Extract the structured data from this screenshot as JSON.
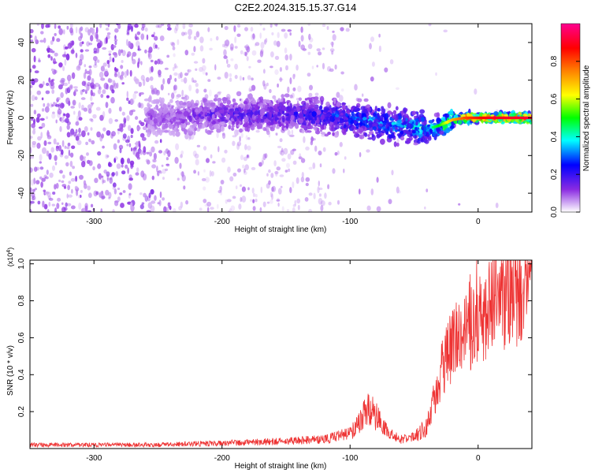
{
  "title": "C2E2.2024.315.15.37.G14",
  "chart_data": [
    {
      "type": "heatmap",
      "title": "C2E2.2024.315.15.37.G14",
      "xlabel": "Height of straight line (km)",
      "ylabel": "Frequency (Hz)",
      "xlim": [
        -350,
        42
      ],
      "ylim": [
        -50,
        50
      ],
      "x_ticks": [
        -300,
        -200,
        -100,
        0
      ],
      "y_ticks": [
        -40,
        -20,
        0,
        20,
        40
      ],
      "colorbar": {
        "label": "Normalized spectral amplitude",
        "range": [
          0,
          1
        ],
        "ticks": [
          0.0,
          0.2,
          0.4,
          0.6,
          0.8
        ],
        "colors": [
          "#ffffff",
          "#8a2be2",
          "#0000ff",
          "#00ffff",
          "#00ff00",
          "#ffff00",
          "#ff8000",
          "#ff0000",
          "#ff0090"
        ]
      },
      "ridge": {
        "x": [
          -350,
          -250,
          -200,
          -150,
          -120,
          -100,
          -80,
          -60,
          -40,
          -30,
          -20,
          -10,
          0,
          10,
          20,
          42
        ],
        "frequency": [
          0,
          0,
          2,
          2,
          1,
          0,
          -2,
          -4,
          -6,
          -4,
          -1,
          0,
          0,
          0,
          0,
          0
        ],
        "amplitude": [
          0.0,
          0.12,
          0.18,
          0.2,
          0.25,
          0.3,
          0.33,
          0.35,
          0.4,
          0.5,
          0.7,
          0.8,
          0.85,
          0.9,
          0.9,
          0.92
        ]
      }
    },
    {
      "type": "line",
      "xlabel": "Height of straight line (km)",
      "ylabel": "SNR (10 * v/v)",
      "y_multiplier": "(x10",
      "y_multiplier_exp": "4",
      "y_multiplier_close": ")",
      "xlim": [
        -350,
        42
      ],
      "ylim": [
        0,
        1.02
      ],
      "x_ticks": [
        -300,
        -200,
        -100,
        0
      ],
      "y_ticks": [
        0.2,
        0.4,
        0.6,
        0.8,
        1.0
      ],
      "series": [
        {
          "color": "#ee3333",
          "x": [
            -350,
            -300,
            -250,
            -200,
            -150,
            -120,
            -100,
            -90,
            -85,
            -80,
            -75,
            -70,
            -60,
            -50,
            -40,
            -35,
            -30,
            -25,
            -20,
            -15,
            -10,
            -5,
            0,
            5,
            10,
            15,
            20,
            25,
            30,
            35,
            42
          ],
          "values": [
            0.02,
            0.02,
            0.02,
            0.03,
            0.04,
            0.05,
            0.08,
            0.17,
            0.22,
            0.18,
            0.12,
            0.08,
            0.05,
            0.06,
            0.12,
            0.25,
            0.38,
            0.5,
            0.55,
            0.6,
            0.62,
            0.65,
            0.7,
            0.72,
            0.78,
            0.85,
            0.83,
            0.84,
            0.86,
            0.88,
            0.92
          ]
        }
      ]
    }
  ]
}
